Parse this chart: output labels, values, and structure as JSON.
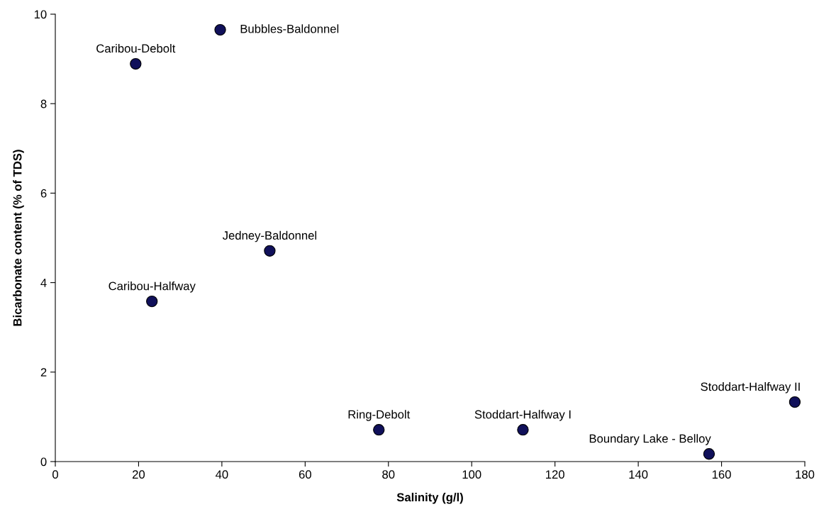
{
  "chart_data": {
    "type": "scatter",
    "xlabel": "Salinity (g/l)",
    "ylabel": "Bicarbonate content (% of TDS)",
    "x": [
      19.3,
      39.6,
      51.5,
      23.2,
      77.7,
      112.3,
      157,
      177.6
    ],
    "values": [
      8.89,
      9.65,
      4.71,
      3.58,
      0.71,
      0.71,
      0.17,
      1.33
    ],
    "color": "#10105a",
    "marker": "circle",
    "grid": false,
    "legend": false,
    "xlim": [
      0,
      180
    ],
    "xticks": [
      0,
      20,
      40,
      60,
      80,
      100,
      120,
      140,
      160,
      180
    ],
    "ylim": [
      0,
      10
    ],
    "yticks": [
      0,
      2,
      4,
      6,
      8,
      10
    ],
    "annotations": [
      {
        "text": "Caribou-Debolt",
        "x": 19.3,
        "y": 8.89
      },
      {
        "text": "Bubbles-Baldonnel",
        "x": 39.6,
        "y": 9.65
      },
      {
        "text": "Jedney-Baldonnel",
        "x": 51.5,
        "y": 4.71
      },
      {
        "text": "Caribou-Halfway",
        "x": 23.2,
        "y": 3.58
      },
      {
        "text": "Ring-Debolt",
        "x": 77.7,
        "y": 0.71
      },
      {
        "text": "Stoddart-Halfway I",
        "x": 112.3,
        "y": 0.71
      },
      {
        "text": "Boundary Lake - Belloy",
        "x": 157,
        "y": 0.17
      },
      {
        "text": "Stoddart-Halfway II",
        "x": 177.6,
        "y": 1.33
      }
    ]
  }
}
